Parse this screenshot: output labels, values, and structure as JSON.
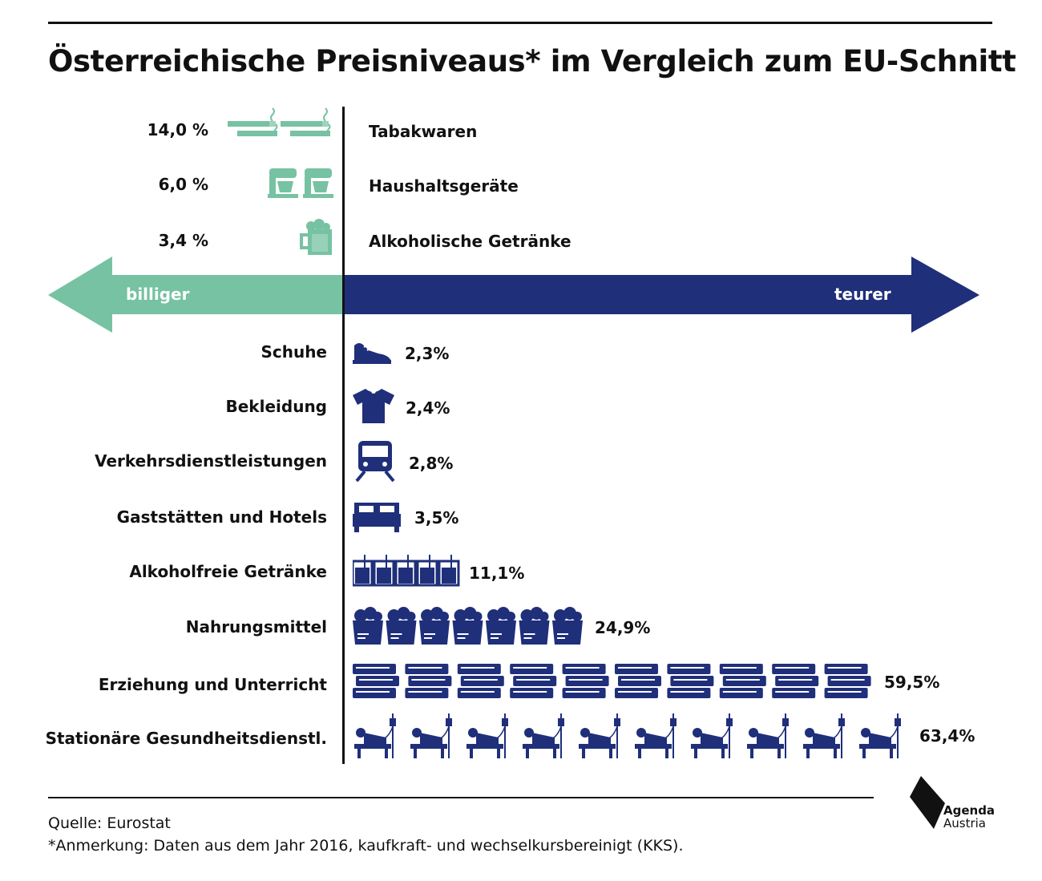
{
  "title": "Österreichische Preisniveaus* im Vergleich zum EU-Schnitt",
  "arrow": {
    "left_label": "billiger",
    "right_label": "teurer"
  },
  "colors": {
    "cheaper": "#76c2a2",
    "more_expensive": "#1f2f7a",
    "text": "#111111"
  },
  "chart_data": {
    "type": "bar",
    "subtype": "pictogram-diverging",
    "title": "Österreichische Preisniveaus* im Vergleich zum EU-Schnitt",
    "cheaper": [
      {
        "category": "Tabakwaren",
        "value": -14.0,
        "label": "14,0 %",
        "icon": "cigarette-icon",
        "icon_count": 2
      },
      {
        "category": "Haushaltsgeräte",
        "value": -6.0,
        "label": "6,0 %",
        "icon": "mixer-icon",
        "icon_count": 2
      },
      {
        "category": "Alkoholische Getränke",
        "value": -3.4,
        "label": "3,4 %",
        "icon": "beer-mug-icon",
        "icon_count": 1
      }
    ],
    "more_expensive": [
      {
        "category": "Schuhe",
        "value": 2.3,
        "label": "2,3%",
        "icon": "sneaker-icon",
        "icon_count": 1
      },
      {
        "category": "Bekleidung",
        "value": 2.4,
        "label": "2,4%",
        "icon": "tshirt-icon",
        "icon_count": 1
      },
      {
        "category": "Verkehrsdienstleistungen",
        "value": 2.8,
        "label": "2,8%",
        "icon": "train-icon",
        "icon_count": 1
      },
      {
        "category": "Gaststätten und Hotels",
        "value": 3.5,
        "label": "3,5%",
        "icon": "bed-icon",
        "icon_count": 1
      },
      {
        "category": "Alkoholfreie Getränke",
        "value": 11.1,
        "label": "11,1%",
        "icon": "drink-glass-icon",
        "icon_count": 5
      },
      {
        "category": "Nahrungsmittel",
        "value": 24.9,
        "label": "24,9%",
        "icon": "grocery-bag-icon",
        "icon_count": 7
      },
      {
        "category": "Erziehung und Unterricht",
        "value": 59.5,
        "label": "59,5%",
        "icon": "books-icon",
        "icon_count": 10
      },
      {
        "category": "Stationäre Gesundheitsdienstl.",
        "value": 63.4,
        "label": "63,4%",
        "icon": "hospital-bed-icon",
        "icon_count": 10
      }
    ]
  },
  "footer": {
    "source": "Quelle: Eurostat",
    "note": "*Anmerkung: Daten aus dem Jahr 2016, kaufkraft- und wechselkursbereinigt (KKS)."
  },
  "logo": {
    "line1": "Agenda",
    "line2": "Austria"
  }
}
